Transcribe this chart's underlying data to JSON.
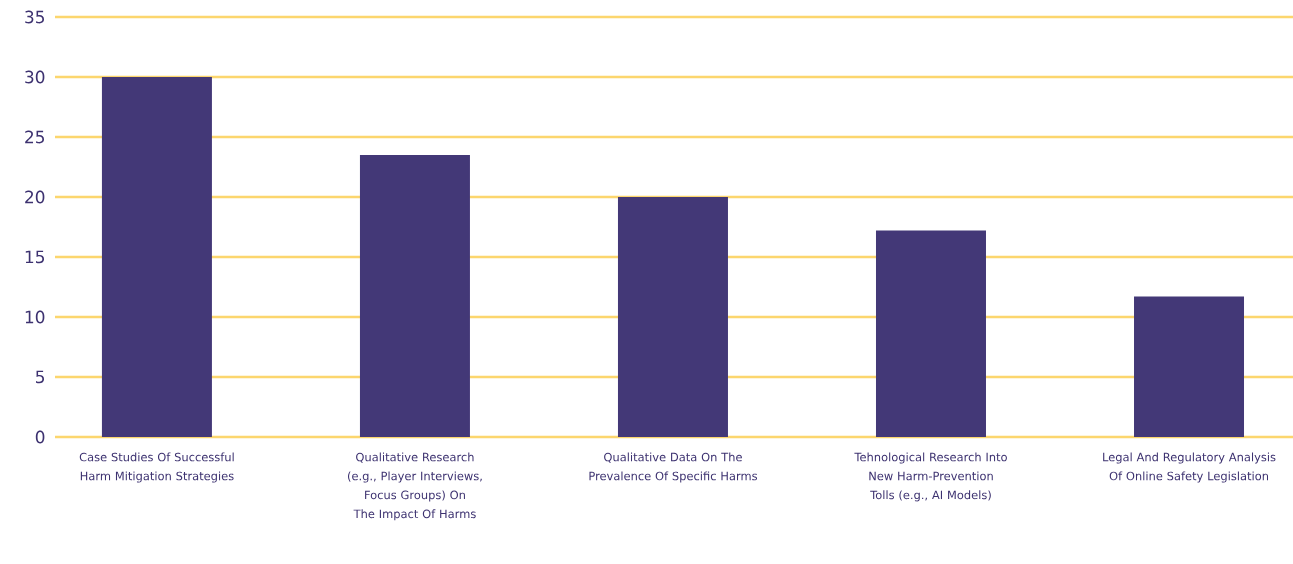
{
  "chart_data": {
    "type": "bar",
    "categories": [
      "Case Studies Of Successful Harm Mitigation Strategies",
      "Qualitative Research (e.g., Player Interviews, Focus Groups) On The Impact Of Harms",
      "Qualitative Data On The Prevalence Of Specific Harms",
      "Tehnological Research Into New Harm-Prevention Tolls (e.g., AI Models)",
      "Legal And Regulatory Analysis Of Online Safety Legislation"
    ],
    "values": [
      30,
      23.5,
      20,
      17.2,
      11.7
    ],
    "color": "#433877",
    "ylim": [
      0,
      35
    ],
    "yticks": [
      0,
      5,
      10,
      15,
      20,
      25,
      30,
      35
    ],
    "grid": "y"
  }
}
